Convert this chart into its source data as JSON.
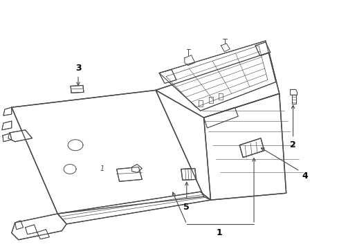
{
  "bg_color": "#ffffff",
  "line_color": "#4a4a4a",
  "label_color": "#000000",
  "figsize": [
    4.9,
    3.6
  ],
  "dpi": 100,
  "xlim": [
    0,
    490
  ],
  "ylim": [
    0,
    360
  ]
}
